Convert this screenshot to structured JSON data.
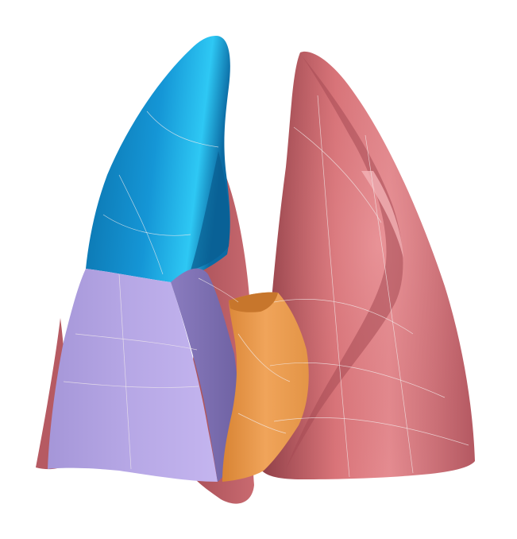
{
  "scene": {
    "kind": "3d-rendered-surface-model",
    "colors": {
      "background": "#ffffff",
      "rose_surface": "#c8676c",
      "rose_dark": "#8f3f47",
      "rose_light": "#e58c91",
      "blue_surface": "#0f8fce",
      "blue_light": "#29c4f2",
      "blue_dark": "#0a5f92",
      "lavender_surface": "#b3a3e3",
      "lavender_dark": "#8578b8",
      "orange_surface": "#e7984c",
      "orange_dark": "#b26a2a",
      "mesh_lines": "#f3ecec"
    }
  }
}
